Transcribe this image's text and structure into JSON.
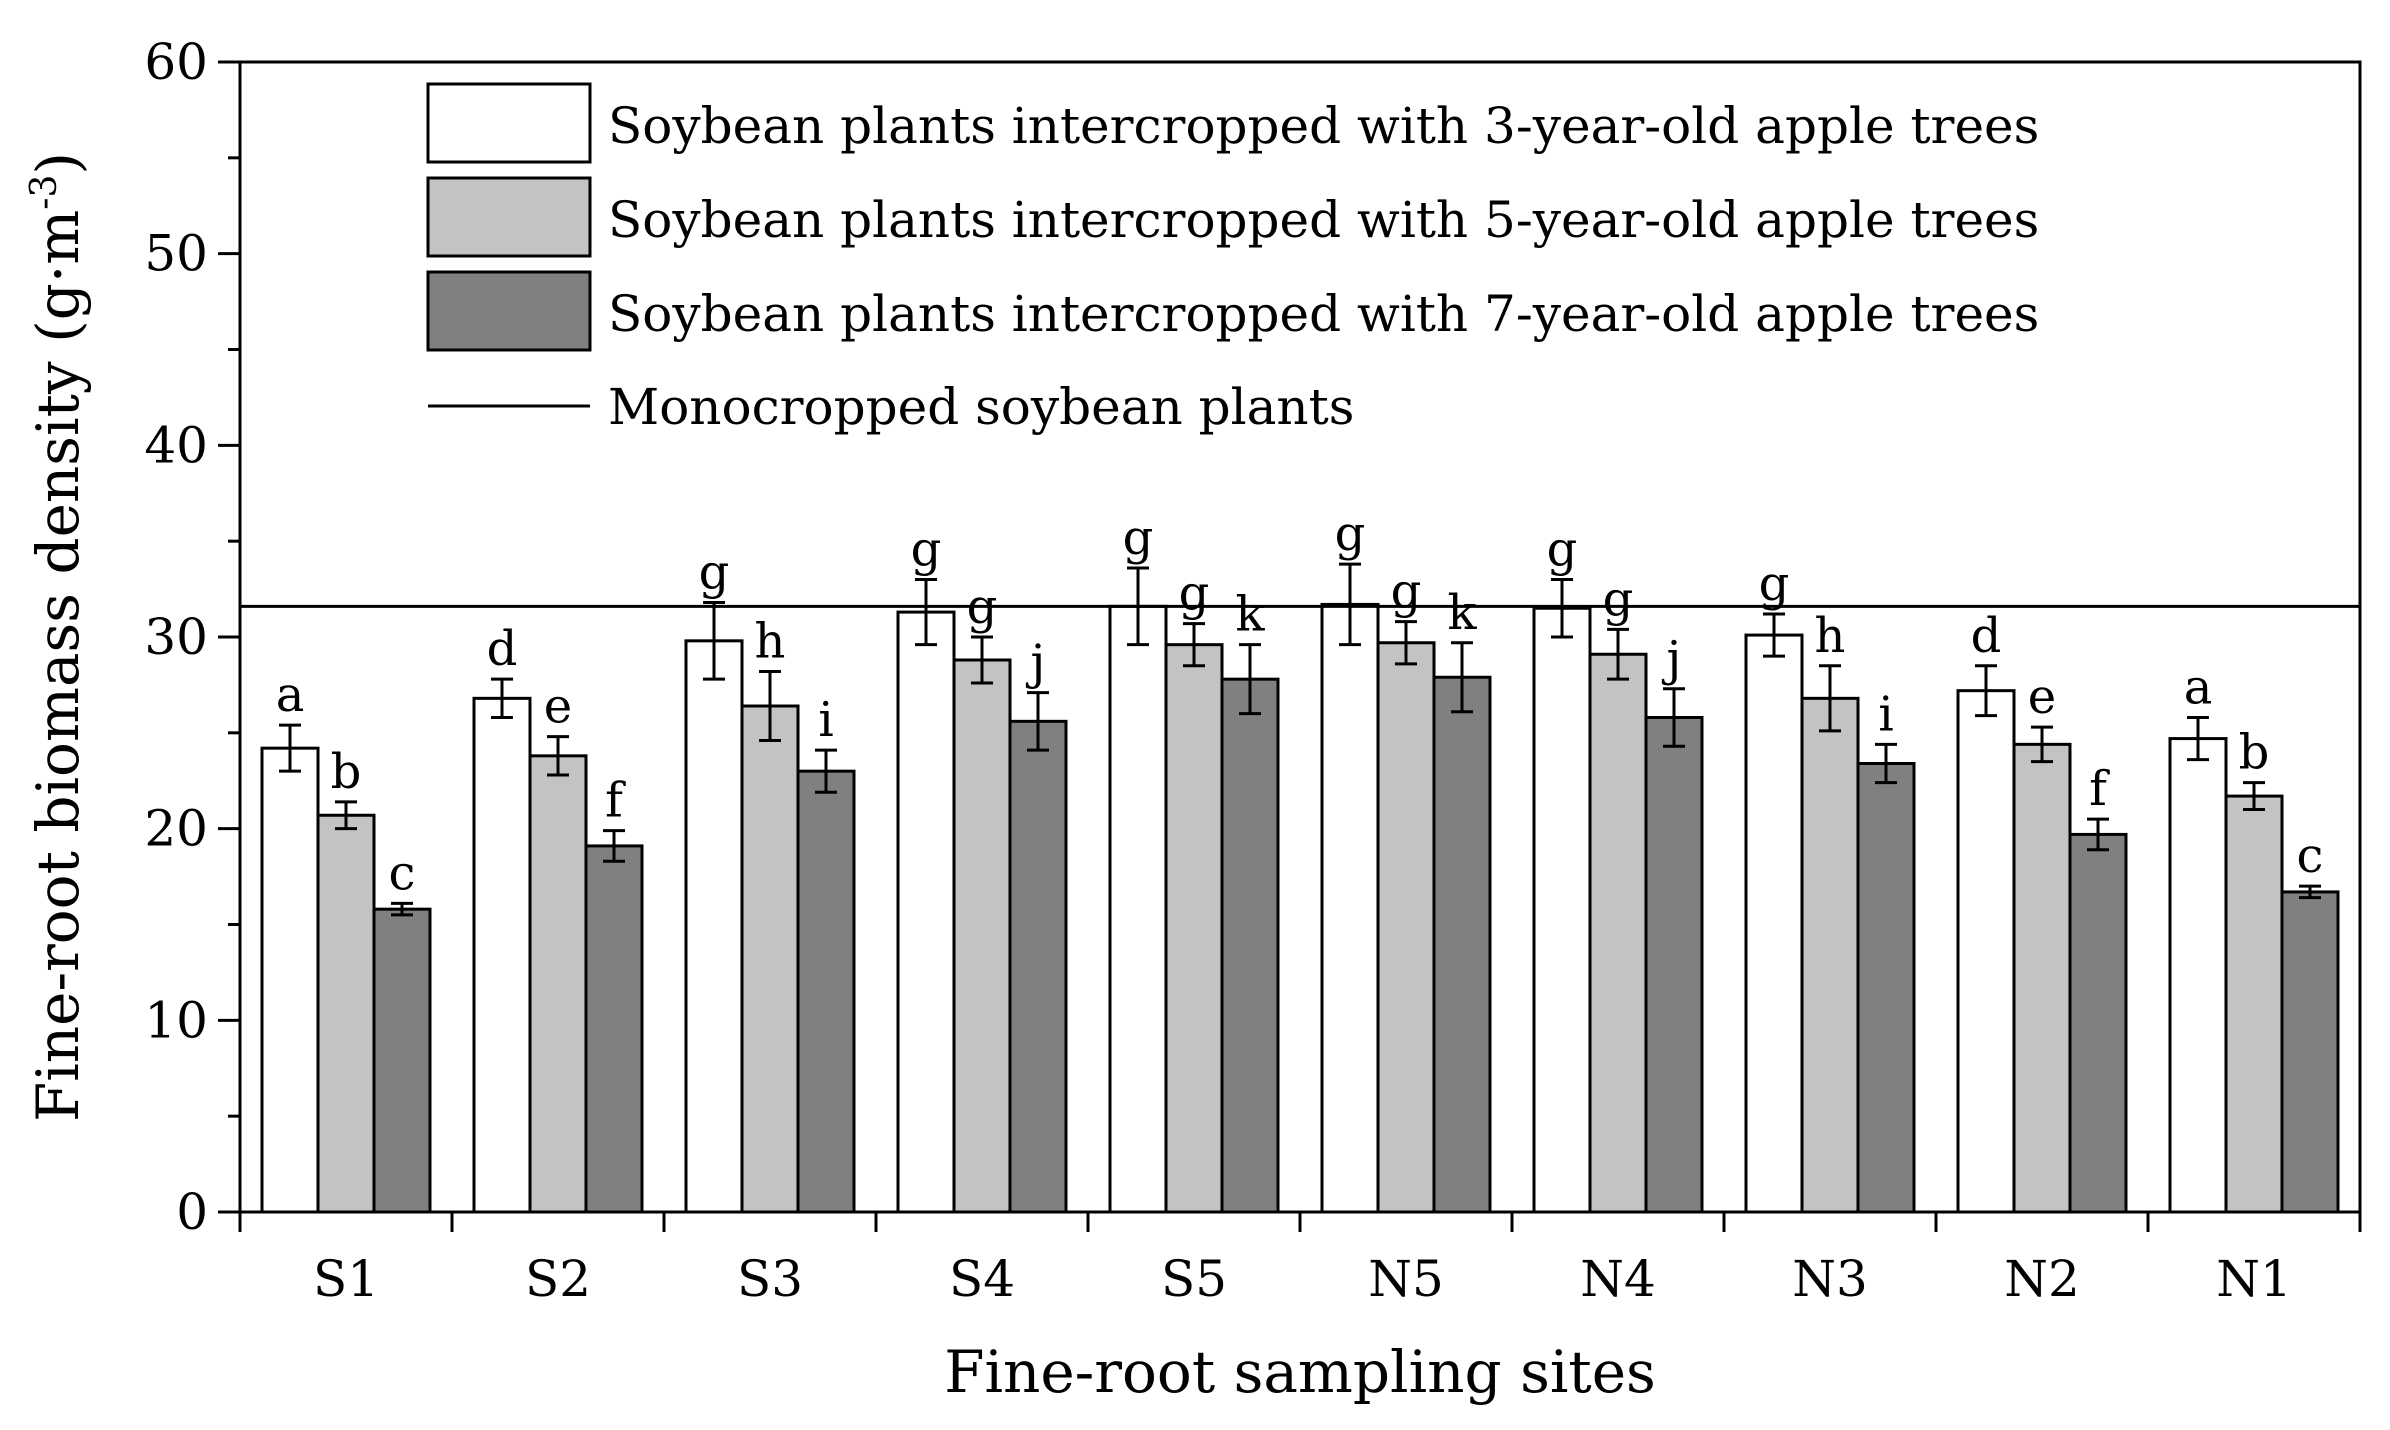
{
  "chart_data": {
    "type": "bar",
    "xlabel": "Fine-root sampling sites",
    "ylabel_main": "Fine-root biomass density (g·m",
    "ylabel_sup": "-3",
    "ylabel_close": ")",
    "ylim": [
      0,
      60
    ],
    "yticks": [
      "0",
      "10",
      "20",
      "30",
      "40",
      "50",
      "60"
    ],
    "categories": [
      "S1",
      "S2",
      "S3",
      "S4",
      "S5",
      "N5",
      "N4",
      "N3",
      "N2",
      "N1"
    ],
    "series": [
      {
        "name": "Soybean plants intercropped with 3-year-old apple trees",
        "color": "#ffffff",
        "values": [
          24.2,
          26.8,
          29.8,
          31.3,
          31.6,
          31.7,
          31.5,
          30.1,
          27.2,
          24.7
        ],
        "errors": [
          1.2,
          1.0,
          2.0,
          1.7,
          2.0,
          2.1,
          1.5,
          1.1,
          1.3,
          1.1
        ],
        "labels": [
          "a",
          "d",
          "g",
          "g",
          "g",
          "g",
          "g",
          "g",
          "d",
          "a"
        ]
      },
      {
        "name": "Soybean plants intercropped with 5-year-old apple trees",
        "color": "#c3c3c3",
        "values": [
          20.7,
          23.8,
          26.4,
          28.8,
          29.6,
          29.7,
          29.1,
          26.8,
          24.4,
          21.7
        ],
        "errors": [
          0.7,
          1.0,
          1.8,
          1.2,
          1.1,
          1.1,
          1.3,
          1.7,
          0.9,
          0.7
        ],
        "labels": [
          "b",
          "e",
          "h",
          "g",
          "g",
          "g",
          "g",
          "h",
          "e",
          "b"
        ]
      },
      {
        "name": "Soybean plants intercropped with 7-year-old apple trees",
        "color": "#808080",
        "values": [
          15.8,
          19.1,
          23.0,
          25.6,
          27.8,
          27.9,
          25.8,
          23.4,
          19.7,
          16.7
        ],
        "errors": [
          0.3,
          0.8,
          1.1,
          1.5,
          1.8,
          1.8,
          1.5,
          1.0,
          0.8,
          0.3
        ],
        "labels": [
          "c",
          "f",
          "i",
          "j",
          "k",
          "k",
          "j",
          "i",
          "f",
          "c"
        ]
      }
    ],
    "reference_line": {
      "name": "Monocropped soybean plants",
      "value": 31.6
    },
    "legend_position": "top-right",
    "grid": false
  }
}
